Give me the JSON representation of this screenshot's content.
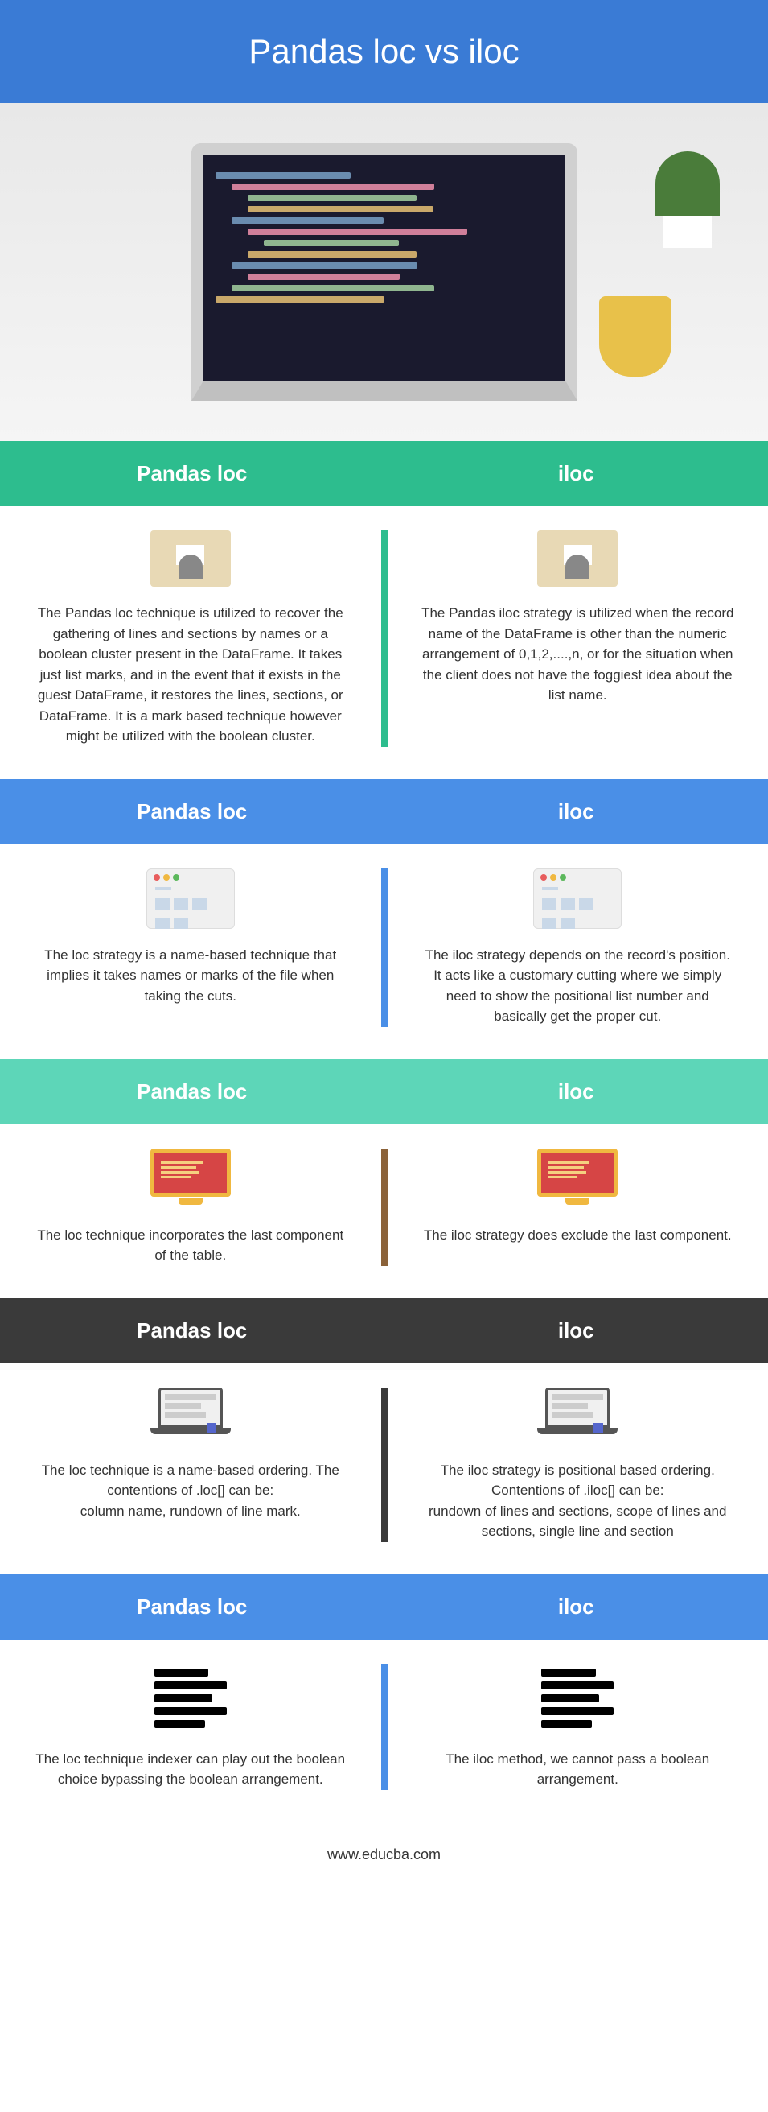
{
  "title": "Pandas loc vs iloc",
  "header_bg": "#3a7bd5",
  "header_color": "#ffffff",
  "footer": "www.educba.com",
  "sections": [
    {
      "header_bg": "#2dbd8e",
      "header_color": "#ffffff",
      "divider_color": "#2dbd8e",
      "left_label": "Pandas loc",
      "right_label": "iloc",
      "left_text": "The Pandas loc technique is utilized to recover the gathering of lines and sections by names or a boolean cluster present in the DataFrame. It takes just list marks, and in the event that it exists in the guest DataFrame, it restores the lines, sections, or DataFrame. It is a mark based technique however might be utilized with the boolean cluster.",
      "right_text": "The Pandas iloc strategy is utilized when the record name of the DataFrame is other than the numeric arrangement of 0,1,2,....,n, or for the situation when the client does not have the foggiest idea about the list name.",
      "icon": "desk"
    },
    {
      "header_bg": "#4a8fe7",
      "header_color": "#ffffff",
      "divider_color": "#4a8fe7",
      "left_label": "Pandas loc",
      "right_label": "iloc",
      "left_text": "The loc strategy is a name-based technique that implies it takes names or marks of the file when taking the cuts.",
      "right_text": "The iloc strategy depends on the record's position. It acts like a customary cutting where we simply need to show the positional list number and basically get the proper cut.",
      "icon": "window"
    },
    {
      "header_bg": "#5dd6b8",
      "header_color": "#ffffff",
      "divider_color": "#8b6239",
      "left_label": "Pandas loc",
      "right_label": "iloc",
      "left_text": "The loc technique incorporates the last component of the table.",
      "right_text": "The iloc strategy does exclude the last component.",
      "icon": "monitor"
    },
    {
      "header_bg": "#3a3a3a",
      "header_color": "#ffffff",
      "divider_color": "#3a3a3a",
      "left_label": "Pandas loc",
      "right_label": "iloc",
      "left_text": "The loc technique is a name-based ordering. The contentions of .loc[] can be:\ncolumn name, rundown of line mark.",
      "right_text": "The iloc strategy is positional based ordering. Contentions of .iloc[] can be:\nrundown of lines and sections, scope of lines and sections, single line and section",
      "icon": "laptop"
    },
    {
      "header_bg": "#4a8fe7",
      "header_color": "#ffffff",
      "divider_color": "#4a8fe7",
      "left_label": "Pandas loc",
      "right_label": "iloc",
      "left_text": "The loc technique indexer can play out the boolean choice bypassing the boolean arrangement.",
      "right_text": "The iloc method, we cannot pass a boolean arrangement.",
      "icon": "lines"
    }
  ]
}
